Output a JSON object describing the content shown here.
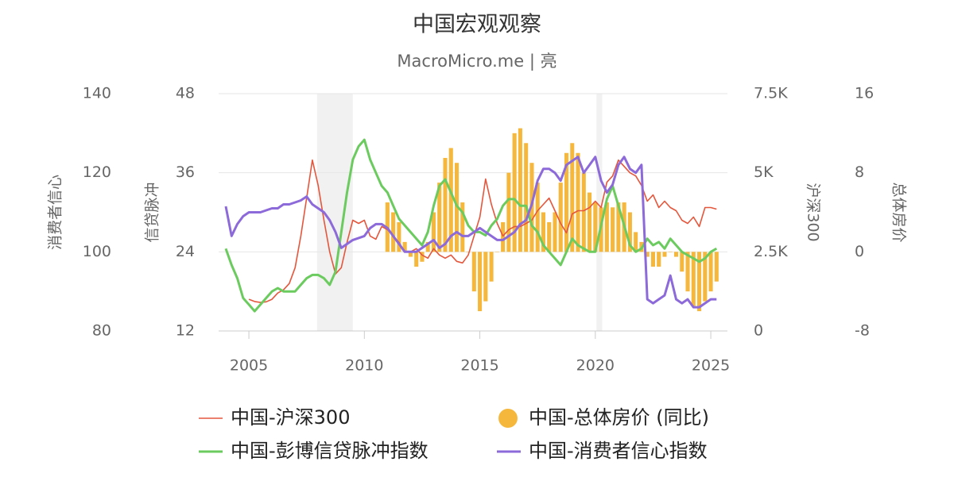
{
  "chart_data": {
    "type": "combo",
    "title": "中国宏观观察",
    "subtitle": "MacroMicro.me | 亮",
    "x": [
      2004.0,
      2004.25,
      2004.5,
      2004.75,
      2005.0,
      2005.25,
      2005.5,
      2005.75,
      2006.0,
      2006.25,
      2006.5,
      2006.75,
      2007.0,
      2007.25,
      2007.5,
      2007.75,
      2008.0,
      2008.25,
      2008.5,
      2008.75,
      2009.0,
      2009.25,
      2009.5,
      2009.75,
      2010.0,
      2010.25,
      2010.5,
      2010.75,
      2011.0,
      2011.25,
      2011.5,
      2011.75,
      2012.0,
      2012.25,
      2012.5,
      2012.75,
      2013.0,
      2013.25,
      2013.5,
      2013.75,
      2014.0,
      2014.25,
      2014.5,
      2014.75,
      2015.0,
      2015.25,
      2015.5,
      2015.75,
      2016.0,
      2016.25,
      2016.5,
      2016.75,
      2017.0,
      2017.25,
      2017.5,
      2017.75,
      2018.0,
      2018.25,
      2018.5,
      2018.75,
      2019.0,
      2019.25,
      2019.5,
      2019.75,
      2020.0,
      2020.25,
      2020.5,
      2020.75,
      2021.0,
      2021.25,
      2021.5,
      2021.75,
      2022.0,
      2022.25,
      2022.5,
      2022.75,
      2023.0,
      2023.25,
      2023.5,
      2023.75,
      2024.0,
      2024.25,
      2024.5,
      2024.75,
      2025.0,
      2025.25
    ],
    "xlim": [
      2003.69,
      2025.72
    ],
    "xticks": [
      2005,
      2010,
      2015,
      2020,
      2025
    ],
    "shaded_ranges": [
      [
        2007.95,
        2009.5
      ],
      [
        2020.05,
        2020.3
      ]
    ],
    "grid": true,
    "axes": [
      {
        "title": "消费者信心",
        "lim": [
          80,
          140
        ],
        "ticks": [
          80,
          100,
          120,
          140
        ],
        "side": "left"
      },
      {
        "title": "信贷脉冲",
        "lim": [
          12,
          48
        ],
        "ticks": [
          12,
          24,
          36,
          48
        ],
        "side": "left"
      },
      {
        "title": "沪深300",
        "lim": [
          0,
          7500
        ],
        "ticks": [
          0,
          {
            "value": 2500,
            "label": "2.5K"
          },
          {
            "value": 5000,
            "label": "5K"
          },
          {
            "value": 7500,
            "label": "7.5K"
          }
        ],
        "side": "right"
      },
      {
        "title": "总体房价",
        "lim": [
          -8,
          16
        ],
        "ticks": [
          -8,
          0,
          8,
          16
        ],
        "side": "right"
      }
    ],
    "series": [
      {
        "name": "中国-沪深300",
        "type": "line",
        "color": "#e4573d",
        "width": 1.6,
        "axis": 2,
        "values": [
          null,
          null,
          null,
          null,
          1000,
          930,
          900,
          920,
          1000,
          1200,
          1300,
          1500,
          2000,
          3000,
          4200,
          5400,
          4600,
          3500,
          2500,
          1800,
          2000,
          2800,
          3500,
          3400,
          3500,
          3000,
          2900,
          3300,
          3200,
          3000,
          2800,
          2500,
          2500,
          2600,
          2400,
          2300,
          2600,
          2400,
          2300,
          2400,
          2200,
          2150,
          2400,
          3000,
          3600,
          4800,
          4000,
          3400,
          3000,
          3200,
          3300,
          3300,
          3400,
          3500,
          3800,
          4000,
          4200,
          3800,
          3400,
          3100,
          3700,
          3800,
          3800,
          3900,
          4100,
          3900,
          4700,
          4900,
          5400,
          5200,
          5000,
          4900,
          4600,
          4100,
          4300,
          3900,
          4100,
          3900,
          3800,
          3500,
          3400,
          3600,
          3300,
          3900,
          3900,
          3850
        ]
      },
      {
        "name": "中国-总体房价 (同比)",
        "type": "bar",
        "color": "#f5b83d",
        "axis": 3,
        "values": [
          null,
          null,
          null,
          null,
          null,
          null,
          null,
          null,
          null,
          null,
          null,
          null,
          null,
          null,
          null,
          null,
          null,
          null,
          null,
          null,
          null,
          null,
          null,
          null,
          null,
          null,
          null,
          null,
          5,
          4,
          3,
          1,
          -0.5,
          -1.5,
          -1,
          1,
          4,
          7,
          9.5,
          10.5,
          9,
          5,
          0,
          -4,
          -6,
          -5,
          -3,
          0,
          3,
          8,
          12,
          12.5,
          11,
          9,
          7,
          4,
          3,
          4,
          7,
          10,
          11,
          10,
          8,
          6,
          5,
          4.5,
          5,
          4.5,
          5,
          5,
          4,
          2,
          1,
          -0.5,
          -1.5,
          -1.5,
          -0.5,
          0,
          -0.5,
          -2,
          -4,
          -5.5,
          -6,
          -5,
          -4,
          -3
        ]
      },
      {
        "name": "中国-彭博信贷脉冲指数",
        "type": "line",
        "color": "#6ccb5f",
        "width": 3,
        "axis": 1,
        "values": [
          24.5,
          22,
          20,
          17,
          16,
          15,
          16,
          17,
          18,
          18.5,
          18,
          18,
          18,
          19,
          20,
          20.5,
          20.5,
          20,
          19,
          21,
          27,
          33,
          38,
          40,
          41,
          38,
          36,
          34,
          33,
          31,
          29,
          28,
          27,
          26,
          25,
          27,
          31,
          34,
          35,
          33,
          31,
          30,
          28,
          27,
          27,
          26.5,
          28,
          29,
          31,
          32,
          32,
          31,
          31,
          28,
          27,
          25,
          24,
          23,
          22,
          24,
          26,
          25,
          24.5,
          24,
          24,
          28,
          32,
          34,
          31,
          28,
          25,
          24,
          24.5,
          26,
          25,
          25.5,
          24.5,
          26,
          25,
          24,
          23.5,
          23,
          22.5,
          23,
          24,
          24.5
        ]
      },
      {
        "name": "中国-消费者信心指数",
        "type": "line",
        "color": "#8d6ad9",
        "width": 3,
        "axis": 0,
        "values": [
          111.5,
          104,
          107,
          109,
          110,
          110,
          110,
          110.5,
          111,
          111,
          112,
          112,
          112.5,
          113,
          114,
          112,
          111,
          110,
          108,
          105,
          101,
          102,
          103,
          103.5,
          104,
          106,
          107,
          107,
          106,
          104,
          102,
          100,
          100,
          100,
          101,
          102,
          103,
          101,
          102,
          104,
          105,
          104,
          104,
          105,
          106,
          105,
          104,
          103,
          103,
          104,
          105,
          107,
          108,
          112,
          118,
          121,
          121,
          120,
          118,
          122,
          123,
          124,
          120,
          122,
          124,
          118,
          115,
          117,
          122,
          124,
          121,
          120,
          122,
          88,
          87,
          88,
          89,
          94,
          88,
          87,
          88,
          86,
          86,
          87,
          88,
          88
        ]
      }
    ]
  }
}
